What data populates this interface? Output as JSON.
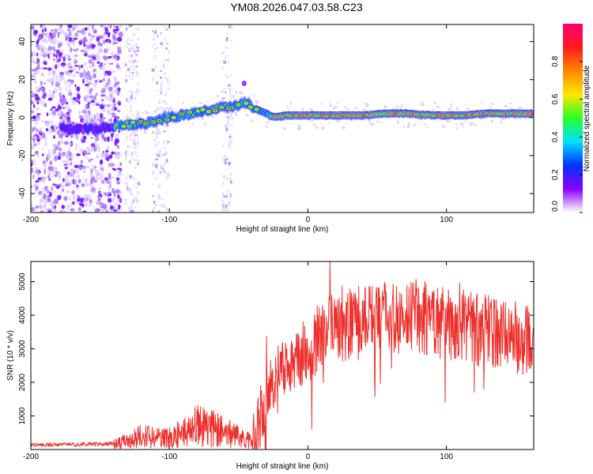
{
  "title": "YM08.2026.047.03.58.C23",
  "colors": {
    "snr_line": "#ee2f2b",
    "frame": "#000000",
    "colormap": [
      "#ffffff",
      "#8a00ff",
      "#0033ff",
      "#00e0ff",
      "#28ff28",
      "#ffe600",
      "#ff8800",
      "#ff1a1a",
      "#ff0077"
    ]
  },
  "chart_data": [
    {
      "type": "heatmap",
      "title": "YM08.2026.047.03.58.C23",
      "xlabel": "Height of straight line (km)",
      "ylabel": "Frequency (Hz)",
      "xlim": [
        -200,
        163
      ],
      "ylim": [
        -50,
        49
      ],
      "xticks": [
        -200,
        -100,
        0,
        100
      ],
      "yticks": [
        -40,
        -20,
        0,
        20,
        40
      ],
      "colorbar": {
        "label": "Normalized spectral amplitude",
        "range": [
          0,
          1
        ],
        "ticks": [
          "0.0",
          "0.2",
          "0.4",
          "0.6",
          "0.8"
        ]
      },
      "ridge": {
        "description": "dominant spectral ridge (x km, frequency Hz)",
        "points": [
          [
            -175,
            -6
          ],
          [
            -150,
            -6
          ],
          [
            -135,
            -4
          ],
          [
            -120,
            -3
          ],
          [
            -110,
            -2
          ],
          [
            -100,
            0
          ],
          [
            -85,
            2
          ],
          [
            -70,
            4
          ],
          [
            -55,
            6
          ],
          [
            -45,
            8
          ],
          [
            -40,
            5
          ],
          [
            -30,
            2
          ],
          [
            -25,
            0
          ],
          [
            -15,
            1
          ],
          [
            0,
            1
          ],
          [
            20,
            1
          ],
          [
            40,
            1
          ],
          [
            55,
            2
          ],
          [
            70,
            2
          ],
          [
            90,
            1
          ],
          [
            110,
            1
          ],
          [
            130,
            2
          ],
          [
            150,
            2
          ],
          [
            163,
            2
          ]
        ]
      }
    },
    {
      "type": "line",
      "xlabel": "Height of straight line (km)",
      "ylabel": "SNR (10 * v/v)",
      "xlim": [
        -200,
        163
      ],
      "ylim": [
        0,
        5600
      ],
      "xticks": [
        -200,
        -100,
        0,
        100
      ],
      "yticks": [
        1000,
        2000,
        3000,
        4000,
        5000
      ],
      "series": [
        {
          "name": "SNR",
          "x": [
            -200,
            -180,
            -160,
            -140,
            -130,
            -120,
            -110,
            -100,
            -90,
            -80,
            -70,
            -60,
            -50,
            -45,
            -40,
            -35,
            -30,
            -25,
            -20,
            -15,
            -10,
            -5,
            0,
            5,
            10,
            15,
            20,
            30,
            40,
            50,
            60,
            70,
            80,
            90,
            100,
            110,
            120,
            130,
            140,
            150,
            160,
            163
          ],
          "values": [
            140,
            140,
            150,
            180,
            250,
            400,
            350,
            350,
            500,
            700,
            650,
            500,
            400,
            300,
            250,
            900,
            1500,
            2000,
            2300,
            2400,
            2500,
            2700,
            2900,
            3100,
            3400,
            3500,
            3700,
            3700,
            3800,
            3900,
            3900,
            3900,
            4000,
            3800,
            3700,
            3700,
            3600,
            3500,
            3400,
            3350,
            3300,
            3300
          ]
        }
      ]
    }
  ]
}
